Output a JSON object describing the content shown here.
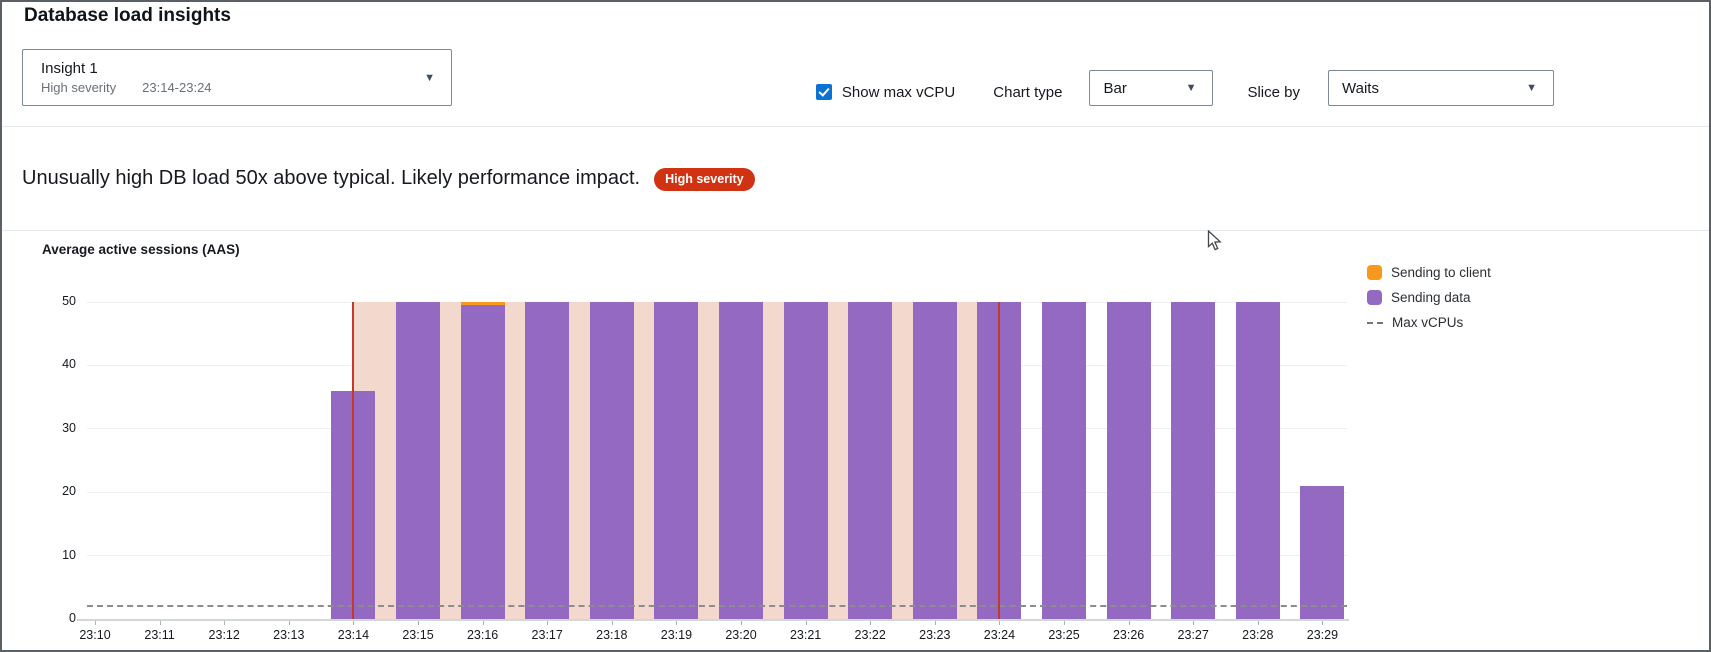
{
  "page": {
    "title": "Database load insights"
  },
  "controls": {
    "insight_select": {
      "label": "Insight 1",
      "severity": "High severity",
      "time_range": "23:14-23:24"
    },
    "show_max_vcpu": {
      "label": "Show max vCPU",
      "checked": true
    },
    "chart_type": {
      "label": "Chart type",
      "value": "Bar"
    },
    "slice_by": {
      "label": "Slice by",
      "value": "Waits"
    }
  },
  "insight_message": {
    "text": "Unusually high DB load 50x above typical. Likely performance impact.",
    "badge": "High severity",
    "badge_color": "#d13212"
  },
  "chart_data": {
    "type": "bar",
    "title": "Average active sessions (AAS)",
    "x": [
      "23:10",
      "23:11",
      "23:12",
      "23:13",
      "23:14",
      "23:15",
      "23:16",
      "23:17",
      "23:18",
      "23:19",
      "23:20",
      "23:21",
      "23:22",
      "23:23",
      "23:24",
      "23:25",
      "23:26",
      "23:27",
      "23:28",
      "23:29"
    ],
    "series": [
      {
        "name": "Sending to client",
        "color": "#f8991d",
        "values": [
          0,
          0,
          0,
          0,
          0,
          0,
          0.5,
          0,
          0,
          0,
          0,
          0,
          0,
          0,
          0,
          0,
          0,
          0,
          0,
          0
        ]
      },
      {
        "name": "Sending data",
        "color": "#9469c1",
        "values": [
          0,
          0,
          0,
          0,
          36,
          50,
          49.5,
          50,
          50,
          50,
          50,
          50,
          50,
          50,
          50,
          50,
          50,
          50,
          50,
          21
        ]
      }
    ],
    "max_vcpus": {
      "label": "Max vCPUs",
      "value": 2,
      "style": "dashed",
      "color": "#8c8c8c"
    },
    "ylim": [
      0,
      50
    ],
    "yticks": [
      0,
      10,
      20,
      30,
      40,
      50
    ],
    "grid": true,
    "legend_position": "right",
    "highlight": {
      "from": "23:14",
      "to": "23:24",
      "band_color": "#f3d8cd",
      "edge_color": "#c23b2a"
    }
  }
}
